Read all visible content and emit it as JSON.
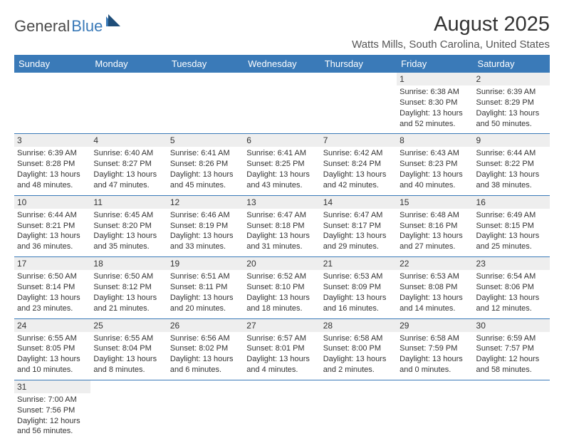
{
  "logo": {
    "text1": "General",
    "text2": "Blue"
  },
  "title": "August 2025",
  "location": "Watts Mills, South Carolina, United States",
  "colors": {
    "header_bg": "#3a7ab8",
    "header_text": "#ffffff",
    "daynum_bg": "#eeeeee",
    "border": "#3a7ab8",
    "logo_gray": "#4a4a4a",
    "logo_blue": "#3a7ab8"
  },
  "weekdays": [
    "Sunday",
    "Monday",
    "Tuesday",
    "Wednesday",
    "Thursday",
    "Friday",
    "Saturday"
  ],
  "weeks": [
    [
      null,
      null,
      null,
      null,
      null,
      {
        "n": "1",
        "sr": "Sunrise: 6:38 AM",
        "ss": "Sunset: 8:30 PM",
        "dl1": "Daylight: 13 hours",
        "dl2": "and 52 minutes."
      },
      {
        "n": "2",
        "sr": "Sunrise: 6:39 AM",
        "ss": "Sunset: 8:29 PM",
        "dl1": "Daylight: 13 hours",
        "dl2": "and 50 minutes."
      }
    ],
    [
      {
        "n": "3",
        "sr": "Sunrise: 6:39 AM",
        "ss": "Sunset: 8:28 PM",
        "dl1": "Daylight: 13 hours",
        "dl2": "and 48 minutes."
      },
      {
        "n": "4",
        "sr": "Sunrise: 6:40 AM",
        "ss": "Sunset: 8:27 PM",
        "dl1": "Daylight: 13 hours",
        "dl2": "and 47 minutes."
      },
      {
        "n": "5",
        "sr": "Sunrise: 6:41 AM",
        "ss": "Sunset: 8:26 PM",
        "dl1": "Daylight: 13 hours",
        "dl2": "and 45 minutes."
      },
      {
        "n": "6",
        "sr": "Sunrise: 6:41 AM",
        "ss": "Sunset: 8:25 PM",
        "dl1": "Daylight: 13 hours",
        "dl2": "and 43 minutes."
      },
      {
        "n": "7",
        "sr": "Sunrise: 6:42 AM",
        "ss": "Sunset: 8:24 PM",
        "dl1": "Daylight: 13 hours",
        "dl2": "and 42 minutes."
      },
      {
        "n": "8",
        "sr": "Sunrise: 6:43 AM",
        "ss": "Sunset: 8:23 PM",
        "dl1": "Daylight: 13 hours",
        "dl2": "and 40 minutes."
      },
      {
        "n": "9",
        "sr": "Sunrise: 6:44 AM",
        "ss": "Sunset: 8:22 PM",
        "dl1": "Daylight: 13 hours",
        "dl2": "and 38 minutes."
      }
    ],
    [
      {
        "n": "10",
        "sr": "Sunrise: 6:44 AM",
        "ss": "Sunset: 8:21 PM",
        "dl1": "Daylight: 13 hours",
        "dl2": "and 36 minutes."
      },
      {
        "n": "11",
        "sr": "Sunrise: 6:45 AM",
        "ss": "Sunset: 8:20 PM",
        "dl1": "Daylight: 13 hours",
        "dl2": "and 35 minutes."
      },
      {
        "n": "12",
        "sr": "Sunrise: 6:46 AM",
        "ss": "Sunset: 8:19 PM",
        "dl1": "Daylight: 13 hours",
        "dl2": "and 33 minutes."
      },
      {
        "n": "13",
        "sr": "Sunrise: 6:47 AM",
        "ss": "Sunset: 8:18 PM",
        "dl1": "Daylight: 13 hours",
        "dl2": "and 31 minutes."
      },
      {
        "n": "14",
        "sr": "Sunrise: 6:47 AM",
        "ss": "Sunset: 8:17 PM",
        "dl1": "Daylight: 13 hours",
        "dl2": "and 29 minutes."
      },
      {
        "n": "15",
        "sr": "Sunrise: 6:48 AM",
        "ss": "Sunset: 8:16 PM",
        "dl1": "Daylight: 13 hours",
        "dl2": "and 27 minutes."
      },
      {
        "n": "16",
        "sr": "Sunrise: 6:49 AM",
        "ss": "Sunset: 8:15 PM",
        "dl1": "Daylight: 13 hours",
        "dl2": "and 25 minutes."
      }
    ],
    [
      {
        "n": "17",
        "sr": "Sunrise: 6:50 AM",
        "ss": "Sunset: 8:14 PM",
        "dl1": "Daylight: 13 hours",
        "dl2": "and 23 minutes."
      },
      {
        "n": "18",
        "sr": "Sunrise: 6:50 AM",
        "ss": "Sunset: 8:12 PM",
        "dl1": "Daylight: 13 hours",
        "dl2": "and 21 minutes."
      },
      {
        "n": "19",
        "sr": "Sunrise: 6:51 AM",
        "ss": "Sunset: 8:11 PM",
        "dl1": "Daylight: 13 hours",
        "dl2": "and 20 minutes."
      },
      {
        "n": "20",
        "sr": "Sunrise: 6:52 AM",
        "ss": "Sunset: 8:10 PM",
        "dl1": "Daylight: 13 hours",
        "dl2": "and 18 minutes."
      },
      {
        "n": "21",
        "sr": "Sunrise: 6:53 AM",
        "ss": "Sunset: 8:09 PM",
        "dl1": "Daylight: 13 hours",
        "dl2": "and 16 minutes."
      },
      {
        "n": "22",
        "sr": "Sunrise: 6:53 AM",
        "ss": "Sunset: 8:08 PM",
        "dl1": "Daylight: 13 hours",
        "dl2": "and 14 minutes."
      },
      {
        "n": "23",
        "sr": "Sunrise: 6:54 AM",
        "ss": "Sunset: 8:06 PM",
        "dl1": "Daylight: 13 hours",
        "dl2": "and 12 minutes."
      }
    ],
    [
      {
        "n": "24",
        "sr": "Sunrise: 6:55 AM",
        "ss": "Sunset: 8:05 PM",
        "dl1": "Daylight: 13 hours",
        "dl2": "and 10 minutes."
      },
      {
        "n": "25",
        "sr": "Sunrise: 6:55 AM",
        "ss": "Sunset: 8:04 PM",
        "dl1": "Daylight: 13 hours",
        "dl2": "and 8 minutes."
      },
      {
        "n": "26",
        "sr": "Sunrise: 6:56 AM",
        "ss": "Sunset: 8:02 PM",
        "dl1": "Daylight: 13 hours",
        "dl2": "and 6 minutes."
      },
      {
        "n": "27",
        "sr": "Sunrise: 6:57 AM",
        "ss": "Sunset: 8:01 PM",
        "dl1": "Daylight: 13 hours",
        "dl2": "and 4 minutes."
      },
      {
        "n": "28",
        "sr": "Sunrise: 6:58 AM",
        "ss": "Sunset: 8:00 PM",
        "dl1": "Daylight: 13 hours",
        "dl2": "and 2 minutes."
      },
      {
        "n": "29",
        "sr": "Sunrise: 6:58 AM",
        "ss": "Sunset: 7:59 PM",
        "dl1": "Daylight: 13 hours",
        "dl2": "and 0 minutes."
      },
      {
        "n": "30",
        "sr": "Sunrise: 6:59 AM",
        "ss": "Sunset: 7:57 PM",
        "dl1": "Daylight: 12 hours",
        "dl2": "and 58 minutes."
      }
    ],
    [
      {
        "n": "31",
        "sr": "Sunrise: 7:00 AM",
        "ss": "Sunset: 7:56 PM",
        "dl1": "Daylight: 12 hours",
        "dl2": "and 56 minutes."
      },
      null,
      null,
      null,
      null,
      null,
      null
    ]
  ]
}
